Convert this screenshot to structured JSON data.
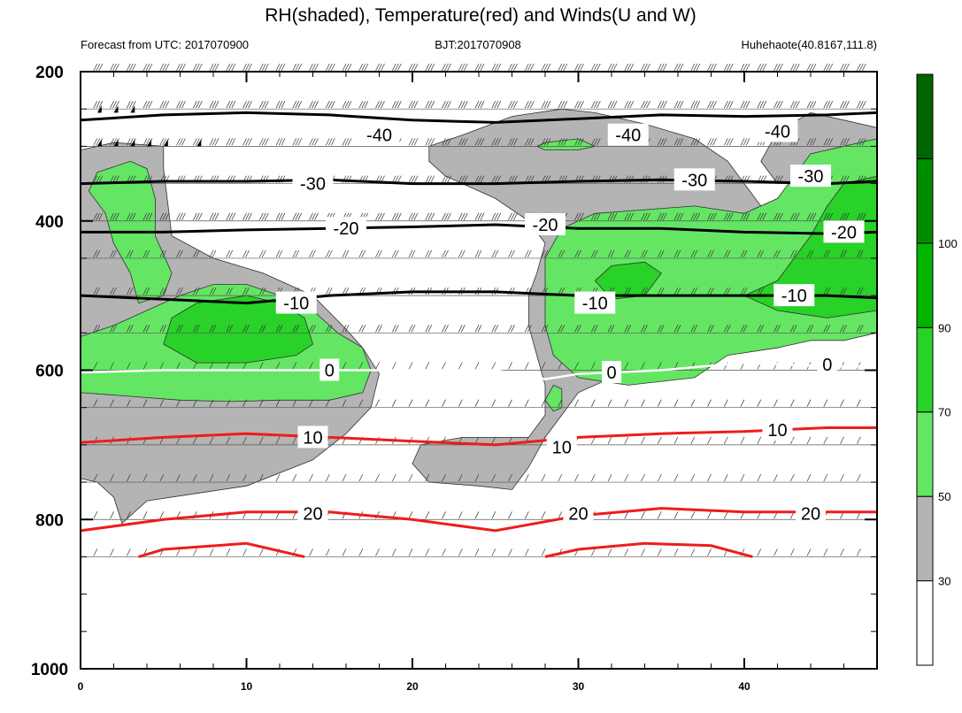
{
  "chart_data": {
    "type": "contour",
    "title": "RH(shaded), Temperature(red) and Winds(U and W)",
    "subtitle_left": "Forecast from UTC: 2017070900",
    "subtitle_center": "BJT:2017070908",
    "subtitle_right": "Huhehaote(40.8167,111.8)",
    "x": {
      "range": [
        0,
        48
      ],
      "ticks": [
        0,
        10,
        20,
        30,
        40
      ],
      "tick_labels": [
        "0",
        "10",
        "20",
        "30",
        "40"
      ]
    },
    "y": {
      "range": [
        200,
        1000
      ],
      "ticks": [
        200,
        400,
        600,
        800,
        1000
      ],
      "tick_labels": [
        "200",
        "400",
        "600",
        "800",
        "1000"
      ]
    },
    "rh_colorbar": {
      "levels": [
        30,
        50,
        70,
        90,
        100
      ],
      "labels": [
        "30",
        "50",
        "70",
        "90",
        "100"
      ],
      "colors": [
        "#ffffff",
        "#b4b4b4",
        "#64e664",
        "#28d228",
        "#00b400",
        "#008c00",
        "#006400"
      ]
    },
    "temperature_contours": [
      {
        "value": -40,
        "label": "-40",
        "color": "#000000",
        "points": [
          [
            0,
            265
          ],
          [
            5,
            258
          ],
          [
            10,
            255
          ],
          [
            15,
            258
          ],
          [
            20,
            265
          ],
          [
            25,
            268
          ],
          [
            30,
            263
          ],
          [
            35,
            258
          ],
          [
            40,
            260
          ],
          [
            45,
            258
          ],
          [
            48,
            255
          ]
        ]
      },
      {
        "value": -30,
        "label": "-30",
        "color": "#000000",
        "points": [
          [
            0,
            350
          ],
          [
            5,
            347
          ],
          [
            10,
            347
          ],
          [
            15,
            345
          ],
          [
            20,
            350
          ],
          [
            25,
            350
          ],
          [
            30,
            347
          ],
          [
            35,
            345
          ],
          [
            40,
            347
          ],
          [
            45,
            350
          ],
          [
            48,
            347
          ]
        ]
      },
      {
        "value": -20,
        "label": "-20",
        "color": "#000000",
        "points": [
          [
            0,
            415
          ],
          [
            5,
            415
          ],
          [
            10,
            412
          ],
          [
            15,
            410
          ],
          [
            20,
            408
          ],
          [
            25,
            405
          ],
          [
            30,
            410
          ],
          [
            35,
            410
          ],
          [
            40,
            415
          ],
          [
            45,
            417
          ],
          [
            48,
            415
          ]
        ]
      },
      {
        "value": -10,
        "label": "-10",
        "color": "#000000",
        "points": [
          [
            0,
            500
          ],
          [
            5,
            505
          ],
          [
            10,
            510
          ],
          [
            15,
            500
          ],
          [
            20,
            495
          ],
          [
            25,
            495
          ],
          [
            30,
            500
          ],
          [
            35,
            500
          ],
          [
            40,
            500
          ],
          [
            45,
            500
          ],
          [
            48,
            503
          ]
        ]
      },
      {
        "value": 0,
        "label": "0",
        "color": "#ffffff",
        "points": [
          [
            0,
            603
          ],
          [
            5,
            600
          ],
          [
            10,
            600
          ],
          [
            15,
            600
          ],
          [
            20,
            600
          ],
          [
            25,
            600
          ],
          [
            28,
            612
          ],
          [
            30,
            605
          ],
          [
            35,
            600
          ],
          [
            40,
            590
          ],
          [
            45,
            595
          ],
          [
            48,
            595
          ]
        ]
      },
      {
        "value": 10,
        "label": "10",
        "color": "#ee1c1c",
        "points": [
          [
            0,
            697
          ],
          [
            5,
            690
          ],
          [
            10,
            685
          ],
          [
            15,
            690
          ],
          [
            20,
            695
          ],
          [
            25,
            700
          ],
          [
            30,
            690
          ],
          [
            35,
            685
          ],
          [
            40,
            682
          ],
          [
            45,
            677
          ],
          [
            48,
            677
          ]
        ]
      },
      {
        "value": 20,
        "label": "20",
        "color": "#ee1c1c",
        "points": [
          [
            0,
            815
          ],
          [
            5,
            800
          ],
          [
            10,
            790
          ],
          [
            15,
            790
          ],
          [
            20,
            800
          ],
          [
            25,
            815
          ],
          [
            30,
            795
          ],
          [
            35,
            785
          ],
          [
            40,
            790
          ],
          [
            45,
            790
          ],
          [
            48,
            790
          ]
        ]
      }
    ]
  }
}
